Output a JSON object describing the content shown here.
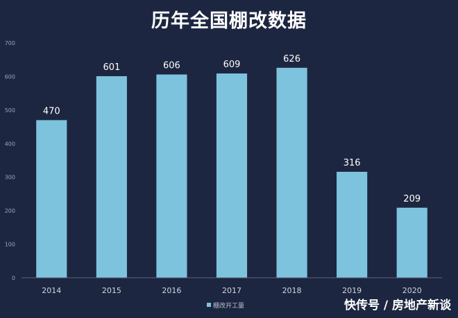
{
  "chart_data": {
    "type": "bar",
    "title": "历年全国棚改数据",
    "categories": [
      "2014",
      "2015",
      "2016",
      "2017",
      "2018",
      "2019",
      "2020"
    ],
    "series": [
      {
        "name": "棚改开工量",
        "values": [
          470,
          601,
          606,
          609,
          626,
          316,
          209
        ]
      }
    ],
    "yticks": [
      "0",
      "100",
      "200",
      "300",
      "400",
      "500",
      "600",
      "700"
    ],
    "ylim": [
      0,
      700
    ],
    "grid": false,
    "legend": "bottom-center",
    "bar_color": "#7ec3de",
    "axis_color": "#5a6478"
  },
  "watermark": "快传号 / 房地产新谈"
}
